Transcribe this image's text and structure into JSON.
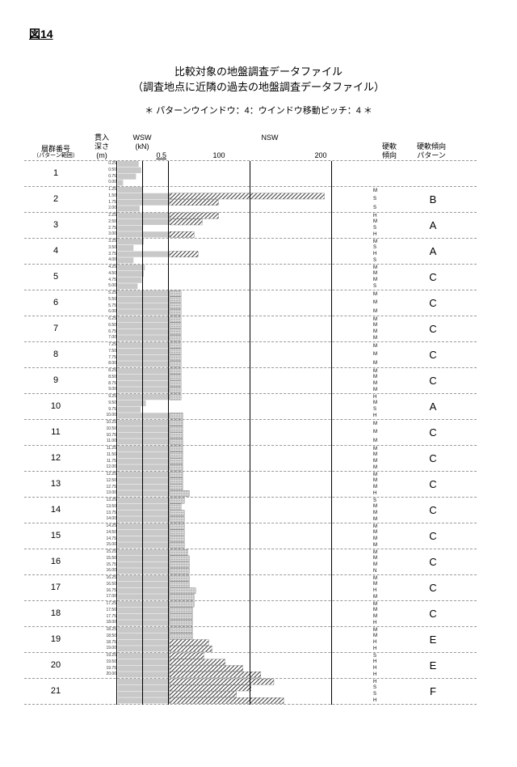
{
  "figureLabel": "図14",
  "title1": "比較対象の地盤調査データファイル",
  "title2": "（調査地点に近隣の過去の地盤調査データファイル）",
  "note": "＊ パターンウインドウ：4：ウインドウ移動ピッチ：4 ＊",
  "headers": {
    "group": "層群番号",
    "groupSub": "（パターン範囲）",
    "depth": "貫入",
    "depth2": "深さ",
    "depth3": "(m)",
    "wsw": "WSW",
    "wswUnit": "(kN)",
    "wswTick": "0.5",
    "nsw": "NSW",
    "nswTick1": "100",
    "nswTick2": "200",
    "trend": "硬軟",
    "trend2": "傾向",
    "pattern": "硬軟傾向",
    "pattern2": "パターン"
  },
  "style": {
    "barAreaPx": 316,
    "wswZonePx": 64,
    "nswZonePx": 252,
    "nswMax": 250,
    "colors": {
      "wswFill": "#c4c4c4",
      "nswDot": "#8a8a8a",
      "nswHatch": "#555555",
      "rowDash": "#b5b5b5",
      "axis": "#000000"
    },
    "rowHeightPx": 32,
    "depthFontPx": 5,
    "trendFontPx": 6
  },
  "depthStep": 0.25,
  "rows": [
    {
      "group": "1",
      "pattern": "",
      "trend": [],
      "depths": [
        "0.25",
        "0.50",
        "0.75",
        "0.00"
      ],
      "bars": [
        {
          "t": "w",
          "v": 0.4
        },
        {
          "t": "w",
          "v": 0.45
        },
        {
          "t": "w",
          "v": 0.35
        },
        {
          "t": "w",
          "v": 0.1
        }
      ]
    },
    {
      "group": "2",
      "pattern": "B",
      "trend": [
        "M",
        "S",
        "S"
      ],
      "depths": [
        "1.25",
        "1.50",
        "1.75",
        "2.00"
      ],
      "bars": [
        {
          "t": "w",
          "v": 0.48
        },
        {
          "t": "h",
          "v": 190
        },
        {
          "t": "h",
          "v": 60
        },
        {
          "t": "w",
          "v": 0.42
        }
      ]
    },
    {
      "group": "3",
      "pattern": "A",
      "trend": [
        "H",
        "M",
        "S",
        "H"
      ],
      "depths": [
        "2.25",
        "2.50",
        "2.75",
        "3.00"
      ],
      "bars": [
        {
          "t": "h",
          "v": 60
        },
        {
          "t": "h",
          "v": 40
        },
        {
          "t": "w",
          "v": 0.48
        },
        {
          "t": "h",
          "v": 30
        }
      ]
    },
    {
      "group": "4",
      "pattern": "A",
      "trend": [
        "M",
        "S",
        "H",
        "S"
      ],
      "depths": [
        "3.25",
        "3.50",
        "3.75",
        "4.00"
      ],
      "bars": [
        {
          "t": "w",
          "v": 0.5
        },
        {
          "t": "w",
          "v": 0.3
        },
        {
          "t": "h",
          "v": 35
        },
        {
          "t": "w",
          "v": 0.3
        }
      ]
    },
    {
      "group": "5",
      "pattern": "C",
      "trend": [
        "M",
        "M",
        "M",
        "S"
      ],
      "depths": [
        "4.25",
        "4.50",
        "4.75",
        "5.00"
      ],
      "bars": [
        {
          "t": "w",
          "v": 0.52
        },
        {
          "t": "w",
          "v": 0.5
        },
        {
          "t": "w",
          "v": 0.46
        },
        {
          "t": "w",
          "v": 0.38
        }
      ]
    },
    {
      "group": "6",
      "pattern": "C",
      "trend": [
        "M",
        "M",
        "M"
      ],
      "depths": [
        "5.25",
        "5.50",
        "5.75",
        "6.00"
      ],
      "bars": [
        {
          "t": "d",
          "v": 14
        },
        {
          "t": "d",
          "v": 14
        },
        {
          "t": "d",
          "v": 14
        },
        {
          "t": "d",
          "v": 14
        }
      ]
    },
    {
      "group": "7",
      "pattern": "C",
      "trend": [
        "M",
        "M",
        "M",
        "M"
      ],
      "depths": [
        "6.25",
        "6.50",
        "6.75",
        "7.00"
      ],
      "bars": [
        {
          "t": "d",
          "v": 14
        },
        {
          "t": "d",
          "v": 14
        },
        {
          "t": "d",
          "v": 14
        },
        {
          "t": "d",
          "v": 14
        }
      ]
    },
    {
      "group": "8",
      "pattern": "C",
      "trend": [
        "M",
        "M",
        "M"
      ],
      "depths": [
        "7.25",
        "7.50",
        "7.75",
        "8.00"
      ],
      "bars": [
        {
          "t": "d",
          "v": 14
        },
        {
          "t": "d",
          "v": 14
        },
        {
          "t": "d",
          "v": 14
        },
        {
          "t": "d",
          "v": 14
        }
      ]
    },
    {
      "group": "9",
      "pattern": "C",
      "trend": [
        "M",
        "M",
        "M",
        "M"
      ],
      "depths": [
        "8.25",
        "8.50",
        "8.75",
        "9.00"
      ],
      "bars": [
        {
          "t": "d",
          "v": 14
        },
        {
          "t": "d",
          "v": 14
        },
        {
          "t": "d",
          "v": 14
        },
        {
          "t": "d",
          "v": 14
        }
      ]
    },
    {
      "group": "10",
      "pattern": "A",
      "trend": [
        "H",
        "M",
        "S",
        "H"
      ],
      "depths": [
        "9.25",
        "9.50",
        "9.75",
        "10.00"
      ],
      "bars": [
        {
          "t": "d",
          "v": 14
        },
        {
          "t": "w",
          "v": 0.54
        },
        {
          "t": "w",
          "v": 0.44
        },
        {
          "t": "d",
          "v": 16
        }
      ]
    },
    {
      "group": "11",
      "pattern": "C",
      "trend": [
        "M",
        "M",
        "M"
      ],
      "depths": [
        "10.25",
        "10.50",
        "10.75",
        "11.00"
      ],
      "bars": [
        {
          "t": "d",
          "v": 16
        },
        {
          "t": "d",
          "v": 16
        },
        {
          "t": "d",
          "v": 16
        },
        {
          "t": "d",
          "v": 16
        }
      ]
    },
    {
      "group": "12",
      "pattern": "C",
      "trend": [
        "M",
        "M",
        "M",
        "M"
      ],
      "depths": [
        "11.25",
        "11.50",
        "11.75",
        "12.00"
      ],
      "bars": [
        {
          "t": "d",
          "v": 16
        },
        {
          "t": "d",
          "v": 16
        },
        {
          "t": "d",
          "v": 16
        },
        {
          "t": "d",
          "v": 16
        }
      ]
    },
    {
      "group": "13",
      "pattern": "C",
      "trend": [
        "M",
        "M",
        "M",
        "H"
      ],
      "depths": [
        "12.25",
        "12.50",
        "12.75",
        "13.00"
      ],
      "bars": [
        {
          "t": "d",
          "v": 16
        },
        {
          "t": "d",
          "v": 16
        },
        {
          "t": "d",
          "v": 16
        },
        {
          "t": "d",
          "v": 24
        }
      ]
    },
    {
      "group": "14",
      "pattern": "C",
      "trend": [
        "S",
        "M",
        "M",
        "M"
      ],
      "depths": [
        "13.25",
        "13.50",
        "13.75",
        "14.00"
      ],
      "bars": [
        {
          "t": "d",
          "v": 18
        },
        {
          "t": "d",
          "v": 14
        },
        {
          "t": "d",
          "v": 18
        },
        {
          "t": "d",
          "v": 18
        }
      ]
    },
    {
      "group": "15",
      "pattern": "C",
      "trend": [
        "M",
        "M",
        "M",
        "M"
      ],
      "depths": [
        "14.25",
        "14.50",
        "14.75",
        "15.00"
      ],
      "bars": [
        {
          "t": "d",
          "v": 18
        },
        {
          "t": "d",
          "v": 18
        },
        {
          "t": "d",
          "v": 18
        },
        {
          "t": "d",
          "v": 18
        }
      ]
    },
    {
      "group": "16",
      "pattern": "C",
      "trend": [
        "M",
        "M",
        "M",
        "N"
      ],
      "depths": [
        "15.25",
        "15.50",
        "15.75",
        "16.00"
      ],
      "bars": [
        {
          "t": "d",
          "v": 22
        },
        {
          "t": "d",
          "v": 24
        },
        {
          "t": "d",
          "v": 24
        },
        {
          "t": "d",
          "v": 24
        }
      ]
    },
    {
      "group": "17",
      "pattern": "C",
      "trend": [
        "M",
        "M",
        "H",
        "M"
      ],
      "depths": [
        "16.25",
        "16.50",
        "16.75",
        "17.00"
      ],
      "bars": [
        {
          "t": "d",
          "v": 24
        },
        {
          "t": "d",
          "v": 24
        },
        {
          "t": "d",
          "v": 32
        },
        {
          "t": "d",
          "v": 30
        }
      ]
    },
    {
      "group": "18",
      "pattern": "C",
      "trend": [
        "M",
        "M",
        "M",
        "H"
      ],
      "depths": [
        "17.25",
        "17.50",
        "17.75",
        "18.00"
      ],
      "bars": [
        {
          "t": "d",
          "v": 30
        },
        {
          "t": "d",
          "v": 28
        },
        {
          "t": "d",
          "v": 28
        },
        {
          "t": "d",
          "v": 28
        }
      ]
    },
    {
      "group": "19",
      "pattern": "E",
      "trend": [
        "M",
        "M",
        "H",
        "H"
      ],
      "depths": [
        "18.25",
        "18.50",
        "18.75",
        "19.00"
      ],
      "bars": [
        {
          "t": "d",
          "v": 28
        },
        {
          "t": "d",
          "v": 28
        },
        {
          "t": "h",
          "v": 48
        },
        {
          "t": "h",
          "v": 52
        }
      ]
    },
    {
      "group": "20",
      "pattern": "E",
      "trend": [
        "S",
        "H",
        "H",
        "H"
      ],
      "depths": [
        "19.25",
        "19.50",
        "19.75",
        "20.00"
      ],
      "bars": [
        {
          "t": "h",
          "v": 42
        },
        {
          "t": "h",
          "v": 68
        },
        {
          "t": "h",
          "v": 90
        },
        {
          "t": "h",
          "v": 112
        }
      ]
    },
    {
      "group": "21",
      "pattern": "F",
      "trend": [
        "H",
        "S",
        "S",
        "H"
      ],
      "depths": [
        "",
        "",
        "",
        ""
      ],
      "bars": [
        {
          "t": "h",
          "v": 128
        },
        {
          "t": "h",
          "v": 100
        },
        {
          "t": "h",
          "v": 82
        },
        {
          "t": "h",
          "v": 140
        }
      ]
    }
  ]
}
